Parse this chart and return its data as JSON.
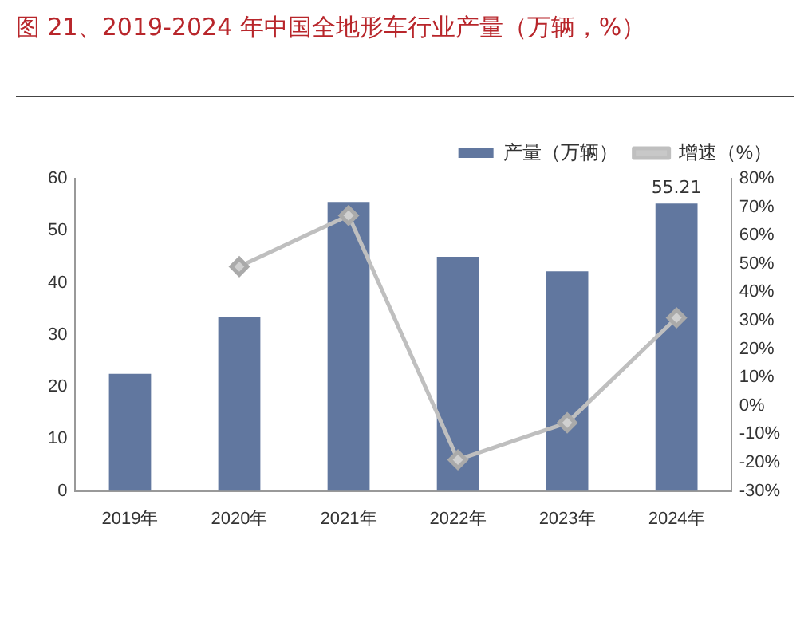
{
  "chart_data": {
    "type": "bar",
    "title": "图 21、2019-2024 年中国全地形车行业产量（万辆，%）",
    "categories": [
      "2019年",
      "2020年",
      "2021年",
      "2022年",
      "2023年",
      "2024年"
    ],
    "series": [
      {
        "name": "产量（万辆）",
        "color": "#61779f",
        "values": [
          22.5,
          33.4,
          55.5,
          45,
          42.2,
          55.21
        ],
        "value_labels": [
          null,
          null,
          null,
          null,
          null,
          "55.21"
        ]
      },
      {
        "name": "增速（%）",
        "type": "line",
        "axis": "y2",
        "color": "#bfbfbf",
        "values": [
          null,
          49,
          67,
          -19,
          -6,
          31
        ]
      }
    ],
    "ylim": [
      0,
      60
    ],
    "yticks": [
      0,
      10,
      20,
      30,
      40,
      50,
      60
    ],
    "y2lim": [
      -30,
      80
    ],
    "y2ticks": [
      {
        "value": -30,
        "label": "-30%"
      },
      {
        "value": -20,
        "label": "-20%"
      },
      {
        "value": -10,
        "label": "-10%"
      },
      {
        "value": 0,
        "label": "0%"
      },
      {
        "value": 10,
        "label": "10%"
      },
      {
        "value": 20,
        "label": "20%"
      },
      {
        "value": 30,
        "label": "30%"
      },
      {
        "value": 40,
        "label": "40%"
      },
      {
        "value": 50,
        "label": "50%"
      },
      {
        "value": 60,
        "label": "60%"
      },
      {
        "value": 70,
        "label": "70%"
      },
      {
        "value": 80,
        "label": "80%"
      }
    ],
    "grid": false,
    "legend": "top right",
    "marker": "diamond",
    "line_style": "solid"
  }
}
